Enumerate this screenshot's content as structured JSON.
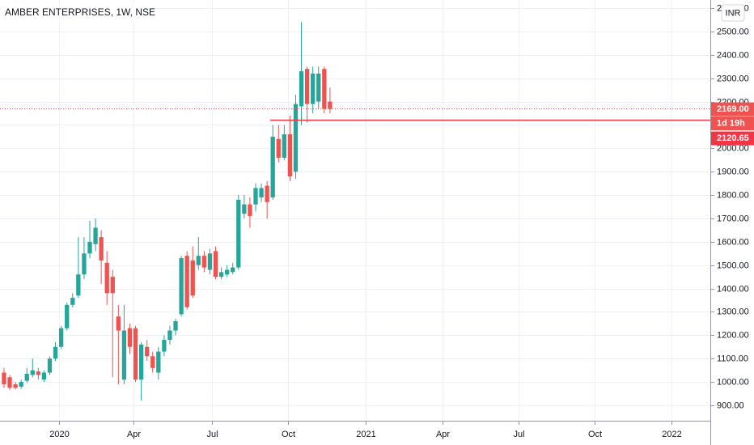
{
  "chart_data": {
    "type": "candlestick",
    "title": "AMBER ENTERPRISES, 1W, NSE",
    "currency": "INR",
    "up_color": "#26a69a",
    "down_color": "#ef5350",
    "grid": true,
    "open": [
      1040,
      1020,
      990,
      980,
      1005,
      1030,
      1045,
      1010,
      1040,
      1100,
      1150,
      1230,
      1330,
      1370,
      1460,
      1550,
      1590,
      1620,
      1510,
      1450,
      1280,
      1010,
      1230,
      1230,
      1010,
      1150,
      1110,
      1040,
      1130,
      1180,
      1220,
      1290,
      1540,
      1520,
      1500,
      1540,
      1480,
      1560,
      1450,
      1460,
      1470,
      1490,
      1720,
      1760,
      1760,
      1790,
      1840,
      1790,
      2040,
      1960,
      2060,
      1900,
      2180,
      2340,
      2190,
      2200,
      2340,
      2200
    ],
    "high": [
      1060,
      1030,
      1000,
      1010,
      1060,
      1100,
      1060,
      1050,
      1110,
      1170,
      1240,
      1340,
      1380,
      1620,
      1620,
      1690,
      1700,
      1650,
      1560,
      1480,
      1330,
      1330,
      1250,
      1240,
      1170,
      1180,
      1130,
      1150,
      1200,
      1240,
      1270,
      1540,
      1560,
      1580,
      1620,
      1560,
      1570,
      1580,
      1490,
      1500,
      1510,
      1800,
      1800,
      1790,
      1850,
      1850,
      1860,
      2100,
      2100,
      2100,
      2140,
      2230,
      2540,
      2350,
      2350,
      2350,
      2350,
      2260
    ],
    "low": [
      975,
      965,
      968,
      970,
      995,
      1020,
      1010,
      1000,
      1030,
      1090,
      1140,
      1220,
      1320,
      1360,
      1440,
      1530,
      1560,
      1420,
      1330,
      1020,
      990,
      990,
      1120,
      1000,
      920,
      1090,
      1040,
      1010,
      1110,
      1160,
      1200,
      1280,
      1310,
      1360,
      1480,
      1470,
      1460,
      1440,
      1440,
      1450,
      1460,
      1480,
      1700,
      1660,
      1730,
      1770,
      1700,
      1780,
      1940,
      1950,
      1860,
      1870,
      2100,
      2110,
      2150,
      2170,
      2150,
      2150
    ],
    "close": [
      990,
      975,
      975,
      1000,
      1035,
      1050,
      1030,
      1040,
      1100,
      1150,
      1230,
      1330,
      1360,
      1460,
      1550,
      1600,
      1660,
      1520,
      1380,
      1380,
      1220,
      1220,
      1150,
      1010,
      1160,
      1110,
      1060,
      1130,
      1180,
      1220,
      1260,
      1530,
      1320,
      1370,
      1540,
      1490,
      1550,
      1450,
      1470,
      1480,
      1490,
      1780,
      1760,
      1710,
      1830,
      1830,
      1770,
      2050,
      1960,
      2060,
      1880,
      2190,
      2330,
      2190,
      2320,
      2320,
      2170,
      2169
    ],
    "ylim": [
      834,
      2635
    ],
    "yticks": [
      {
        "value": 900,
        "label": "900.00"
      },
      {
        "value": 1000,
        "label": "1000.00"
      },
      {
        "value": 1100,
        "label": "1100.00"
      },
      {
        "value": 1200,
        "label": "1200.00"
      },
      {
        "value": 1300,
        "label": "1300.00"
      },
      {
        "value": 1400,
        "label": "1400.00"
      },
      {
        "value": 1500,
        "label": "1500.00"
      },
      {
        "value": 1600,
        "label": "1600.00"
      },
      {
        "value": 1700,
        "label": "1700.00"
      },
      {
        "value": 1800,
        "label": "1800.00"
      },
      {
        "value": 1900,
        "label": "1900.00"
      },
      {
        "value": 2000,
        "label": "2000.00"
      },
      {
        "value": 2100,
        "label": "2100.00"
      },
      {
        "value": 2200,
        "label": "2200.00"
      },
      {
        "value": 2300,
        "label": "2300.00"
      },
      {
        "value": 2400,
        "label": "2400.00"
      },
      {
        "value": 2500,
        "label": "2500.00"
      },
      {
        "value": 2600,
        "label": "2600.00"
      }
    ],
    "xlim": [
      -0.7,
      123.5
    ],
    "xticks": [
      {
        "value": 9.6,
        "label": "2020"
      },
      {
        "value": 22.6,
        "label": "Apr"
      },
      {
        "value": 36.3,
        "label": "Jul"
      },
      {
        "value": 49.6,
        "label": "Oct"
      },
      {
        "value": 63.2,
        "label": "2021"
      },
      {
        "value": 76.7,
        "label": "Apr"
      },
      {
        "value": 90,
        "label": "Jul"
      },
      {
        "value": 103.3,
        "label": "Oct"
      },
      {
        "value": 116.7,
        "label": "2022"
      }
    ],
    "last_price": {
      "value": 2169,
      "label": "2169.00",
      "countdown": "1d 19h"
    },
    "hline": {
      "value": 2120.65,
      "label": "2120.65",
      "color": "#f23645"
    }
  }
}
